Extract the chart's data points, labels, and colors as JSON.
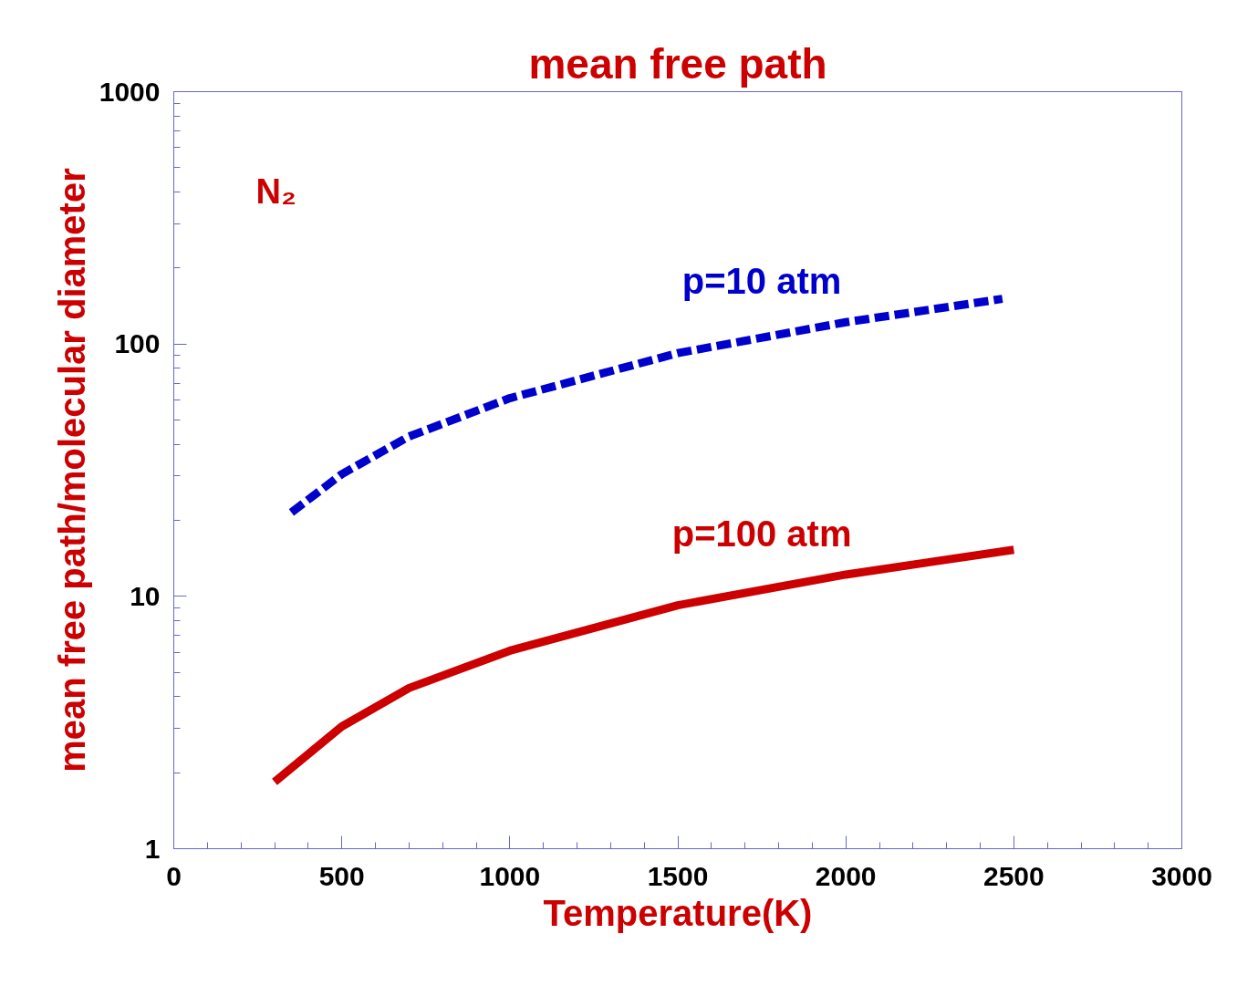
{
  "chart_data": {
    "type": "line",
    "title": "mean free path",
    "xlabel": "Temperature(K)",
    "ylabel": "mean free path/molecular diameter",
    "log": "y",
    "xlim": [
      0,
      3000
    ],
    "ylim": [
      1,
      1000
    ],
    "xticks": [
      0,
      500,
      1000,
      1500,
      2000,
      2500,
      3000
    ],
    "yticks": [
      1,
      10,
      100,
      1000
    ],
    "grid": false,
    "annotations": [
      "N₂"
    ],
    "series": [
      {
        "name": "p=10 atm",
        "color": "#0000cc",
        "line_style": "dashed",
        "x": [
          350,
          500,
          700,
          1000,
          1500,
          2000,
          2466
        ],
        "values": [
          21.5,
          30.5,
          43,
          61,
          92,
          122,
          151
        ]
      },
      {
        "name": "p=100 atm",
        "color": "#cc0000",
        "line_style": "solid",
        "x": [
          300,
          500,
          700,
          1000,
          1500,
          2000,
          2500
        ],
        "values": [
          1.84,
          3.05,
          4.33,
          6.09,
          9.22,
          12.2,
          15.3
        ]
      }
    ]
  }
}
